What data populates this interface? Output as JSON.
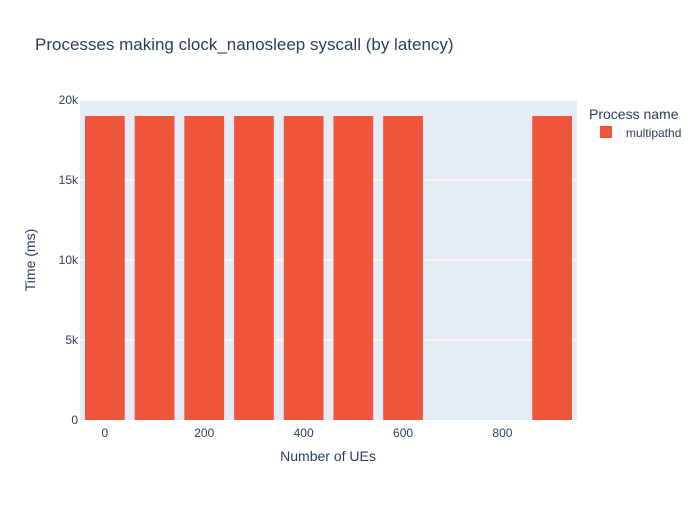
{
  "chart_data": {
    "type": "bar",
    "title": "Processes making clock_nanosleep syscall (by latency)",
    "xlabel": "Number of UEs",
    "ylabel": "Time (ms)",
    "x": [
      0,
      100,
      200,
      300,
      400,
      500,
      600,
      900
    ],
    "series": [
      {
        "name": "multipathd",
        "values": [
          19000,
          19000,
          19000,
          19000,
          19000,
          19000,
          19000,
          19000
        ]
      }
    ],
    "xlim": [
      -50,
      950
    ],
    "ylim": [
      0,
      20000
    ],
    "xticks": [
      0,
      200,
      400,
      600,
      800
    ],
    "xtick_labels": [
      "0",
      "200",
      "400",
      "600",
      "800"
    ],
    "yticks": [
      0,
      5000,
      10000,
      15000,
      20000
    ],
    "ytick_labels": [
      "0",
      "5k",
      "10k",
      "15k",
      "20k"
    ],
    "legend": {
      "title": "Process name",
      "position": "top-right"
    },
    "grid": true,
    "colors": {
      "bar": "#EF553B",
      "plot_bg": "#E5ECF6",
      "grid": "#ffffff",
      "text": "#2a3f5f"
    }
  }
}
